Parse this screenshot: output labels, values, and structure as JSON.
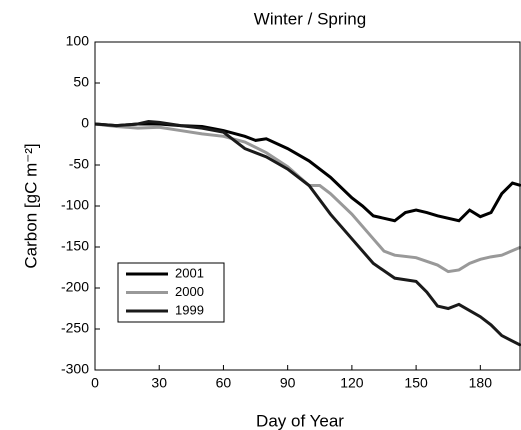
{
  "chart_data": {
    "type": "line",
    "title": "Winter / Spring",
    "x_label": "Day of Year",
    "y_label": "Carbon [gC m⁻²]",
    "xlim": [
      0,
      199
    ],
    "ylim": [
      -300,
      100
    ],
    "xticks": [
      0,
      30,
      60,
      90,
      120,
      150,
      180
    ],
    "yticks": [
      100,
      50,
      0,
      -50,
      -100,
      -150,
      -200,
      -250,
      -300
    ],
    "legend": "lower left",
    "series": [
      {
        "name": "2001",
        "color": "#000000",
        "x": [
          0,
          10,
          20,
          30,
          40,
          50,
          60,
          70,
          75,
          80,
          90,
          100,
          110,
          120,
          125,
          130,
          140,
          145,
          150,
          155,
          160,
          170,
          175,
          180,
          185,
          190,
          195,
          199
        ],
        "values": [
          0,
          -2,
          0,
          0,
          -2,
          -3,
          -8,
          -15,
          -20,
          -18,
          -30,
          -45,
          -65,
          -90,
          -100,
          -112,
          -118,
          -108,
          -105,
          -108,
          -112,
          -118,
          -105,
          -113,
          -108,
          -85,
          -72,
          -75
        ]
      },
      {
        "name": "2000",
        "color": "#999999",
        "x": [
          0,
          10,
          20,
          30,
          40,
          50,
          60,
          70,
          80,
          90,
          100,
          105,
          110,
          120,
          130,
          135,
          140,
          150,
          160,
          165,
          170,
          175,
          180,
          185,
          190,
          199
        ],
        "values": [
          0,
          -3,
          -5,
          -4,
          -8,
          -12,
          -15,
          -22,
          -35,
          -52,
          -75,
          -75,
          -85,
          -110,
          -140,
          -155,
          -160,
          -163,
          -172,
          -180,
          -178,
          -170,
          -165,
          -162,
          -160,
          -150
        ]
      },
      {
        "name": "1999",
        "color": "#1a1a1a",
        "x": [
          0,
          10,
          20,
          25,
          30,
          40,
          50,
          60,
          70,
          80,
          90,
          100,
          110,
          120,
          130,
          140,
          150,
          155,
          160,
          165,
          170,
          180,
          185,
          190,
          199
        ],
        "values": [
          0,
          -2,
          0,
          3,
          2,
          -2,
          -5,
          -10,
          -30,
          -40,
          -55,
          -75,
          -110,
          -140,
          -170,
          -188,
          -192,
          -205,
          -222,
          -225,
          -220,
          -235,
          -245,
          -258,
          -270
        ]
      }
    ]
  }
}
